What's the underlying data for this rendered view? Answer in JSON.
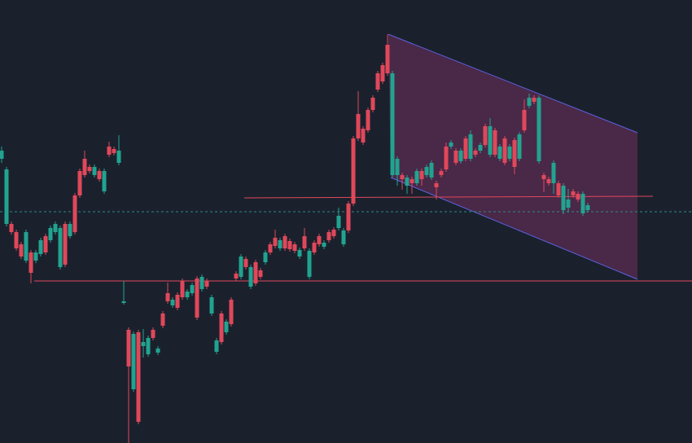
{
  "chart_data": {
    "type": "candlestick",
    "up_color": "#22a390",
    "down_color": "#e0485a",
    "ylim": [
      0,
      544
    ],
    "candles": [
      [
        349,
        364,
        344,
        359
      ],
      [
        269,
        339,
        266,
        336
      ],
      [
        269,
        272,
        256,
        259
      ],
      [
        259,
        262,
        236,
        239
      ],
      [
        244,
        247,
        226,
        229
      ],
      [
        224,
        262,
        221,
        259
      ],
      [
        234,
        237,
        196,
        209
      ],
      [
        224,
        237,
        221,
        234
      ],
      [
        232,
        252,
        229,
        249
      ],
      [
        254,
        257,
        231,
        234
      ],
      [
        249,
        267,
        246,
        264
      ],
      [
        259,
        272,
        256,
        269
      ],
      [
        216,
        267,
        213,
        264
      ],
      [
        269,
        272,
        216,
        219
      ],
      [
        254,
        272,
        251,
        269
      ],
      [
        304,
        307,
        256,
        259
      ],
      [
        334,
        337,
        301,
        304
      ],
      [
        349,
        359,
        326,
        329
      ],
      [
        339,
        342,
        331,
        334
      ],
      [
        329,
        342,
        326,
        339
      ],
      [
        334,
        337,
        321,
        324
      ],
      [
        309,
        337,
        306,
        334
      ],
      [
        364,
        370,
        351,
        354
      ],
      [
        361,
        364,
        353,
        356
      ],
      [
        344,
        378,
        341,
        359
      ],
      [
        172,
        199,
        170,
        174
      ],
      [
        139,
        142,
        0,
        94
      ],
      [
        66,
        137,
        63,
        134
      ],
      [
        136,
        139,
        23,
        26
      ],
      [
        119,
        140,
        105,
        124
      ],
      [
        109,
        132,
        106,
        129
      ],
      [
        139,
        142,
        126,
        129
      ],
      [
        111,
        119,
        108,
        116
      ],
      [
        159,
        162,
        141,
        144
      ],
      [
        184,
        197,
        171,
        174
      ],
      [
        169,
        179,
        166,
        176
      ],
      [
        182,
        185,
        163,
        166
      ],
      [
        199,
        202,
        176,
        179
      ],
      [
        179,
        189,
        176,
        186
      ],
      [
        184,
        197,
        181,
        194
      ],
      [
        202,
        205,
        151,
        154
      ],
      [
        189,
        207,
        186,
        204
      ],
      [
        199,
        202,
        189,
        192
      ],
      [
        159,
        182,
        156,
        179
      ],
      [
        112,
        129,
        109,
        126
      ],
      [
        159,
        162,
        121,
        124
      ],
      [
        136,
        152,
        133,
        149
      ],
      [
        176,
        179,
        143,
        146
      ],
      [
        208,
        211,
        199,
        202
      ],
      [
        204,
        232,
        201,
        229
      ],
      [
        226,
        229,
        213,
        216
      ],
      [
        192,
        219,
        189,
        216
      ],
      [
        222,
        225,
        193,
        196
      ],
      [
        212,
        215,
        201,
        204
      ],
      [
        222,
        237,
        219,
        234
      ],
      [
        244,
        247,
        231,
        234
      ],
      [
        252,
        262,
        239,
        242
      ],
      [
        239,
        252,
        236,
        249
      ],
      [
        254,
        257,
        236,
        239
      ],
      [
        248,
        251,
        235,
        238
      ],
      [
        244,
        247,
        233,
        236
      ],
      [
        229,
        240,
        226,
        237
      ],
      [
        254,
        264,
        236,
        239
      ],
      [
        204,
        239,
        201,
        236
      ],
      [
        246,
        249,
        231,
        234
      ],
      [
        254,
        257,
        241,
        244
      ],
      [
        241,
        249,
        238,
        246
      ],
      [
        259,
        262,
        246,
        249
      ],
      [
        262,
        265,
        251,
        254
      ],
      [
        264,
        289,
        261,
        279
      ],
      [
        244,
        264,
        241,
        261
      ],
      [
        294,
        297,
        258,
        261
      ],
      [
        374,
        377,
        291,
        294
      ],
      [
        404,
        432,
        371,
        374
      ],
      [
        386,
        389,
        366,
        369
      ],
      [
        409,
        412,
        381,
        384
      ],
      [
        424,
        427,
        406,
        409
      ],
      [
        454,
        457,
        431,
        434
      ],
      [
        464,
        467,
        441,
        444
      ],
      [
        489,
        502,
        451,
        454
      ],
      [
        329,
        457,
        326,
        454
      ],
      [
        329,
        352,
        316,
        349
      ],
      [
        329,
        332,
        311,
        324
      ],
      [
        316,
        329,
        306,
        326
      ],
      [
        324,
        327,
        306,
        319
      ],
      [
        319,
        337,
        316,
        334
      ],
      [
        334,
        337,
        316,
        324
      ],
      [
        329,
        342,
        326,
        339
      ],
      [
        326,
        347,
        323,
        344
      ],
      [
        319,
        322,
        299,
        314
      ],
      [
        334,
        337,
        326,
        329
      ],
      [
        364,
        369,
        333,
        336
      ],
      [
        364,
        372,
        361,
        369
      ],
      [
        359,
        362,
        341,
        344
      ],
      [
        346,
        362,
        343,
        359
      ],
      [
        374,
        377,
        346,
        349
      ],
      [
        349,
        384,
        346,
        379
      ],
      [
        359,
        362,
        351,
        354
      ],
      [
        359,
        369,
        356,
        366
      ],
      [
        389,
        392,
        363,
        366
      ],
      [
        354,
        399,
        351,
        389
      ],
      [
        384,
        387,
        351,
        354
      ],
      [
        349,
        367,
        346,
        364
      ],
      [
        374,
        377,
        341,
        344
      ],
      [
        349,
        367,
        346,
        364
      ],
      [
        372,
        375,
        330,
        339
      ],
      [
        349,
        382,
        346,
        379
      ],
      [
        409,
        422,
        381,
        384
      ],
      [
        414,
        429,
        411,
        424
      ],
      [
        424,
        427,
        416,
        419
      ],
      [
        346,
        427,
        343,
        424
      ],
      [
        329,
        332,
        308,
        324
      ],
      [
        324,
        327,
        316,
        319
      ],
      [
        319,
        347,
        306,
        344
      ],
      [
        319,
        322,
        301,
        304
      ],
      [
        286,
        319,
        281,
        316
      ],
      [
        289,
        312,
        283,
        299
      ],
      [
        309,
        312,
        301,
        304
      ],
      [
        306,
        309,
        296,
        299
      ],
      [
        282,
        309,
        279,
        306
      ],
      [
        286,
        295,
        283,
        292
      ]
    ]
  }
}
